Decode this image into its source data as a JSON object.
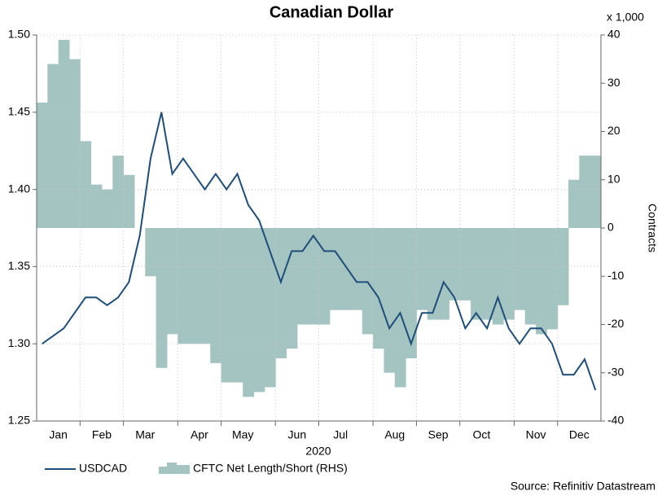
{
  "chart_data": {
    "type": "line+area",
    "title": "Canadian Dollar",
    "xlabel": "2020",
    "y2label": "Contracts",
    "y2unit": "x 1,000",
    "source": "Source: Refinitiv Datastream",
    "categories": [
      null,
      null,
      "Jan",
      null,
      null,
      null,
      "Feb",
      null,
      null,
      null,
      "Mar",
      null,
      null,
      null,
      null,
      "Apr",
      null,
      null,
      null,
      "May",
      null,
      null,
      null,
      null,
      "Jun",
      null,
      null,
      null,
      "Jul",
      null,
      null,
      null,
      null,
      "Aug",
      null,
      null,
      null,
      "Sep",
      null,
      null,
      null,
      "Oct",
      null,
      null,
      null,
      null,
      "Nov",
      null,
      null,
      null,
      "Dec",
      null
    ],
    "ylim": [
      1.25,
      1.5
    ],
    "yticks": [
      1.25,
      {
        "value": 1.3,
        "label": "1.30"
      },
      1.35,
      {
        "value": 1.4,
        "label": "1.40"
      },
      1.45,
      {
        "value": 1.5,
        "label": "1.50"
      }
    ],
    "y2lim": [
      -40,
      40
    ],
    "y2ticks": [
      -40,
      -30,
      -20,
      -10,
      0,
      10,
      20,
      30,
      40
    ],
    "grid": true,
    "series": [
      {
        "name": "USDCAD",
        "type": "line",
        "color": "#1f4e79",
        "values": [
          1.3,
          1.305,
          1.31,
          1.32,
          1.33,
          1.33,
          1.325,
          1.33,
          1.34,
          1.37,
          1.42,
          1.45,
          1.41,
          1.42,
          1.41,
          1.4,
          1.41,
          1.4,
          1.41,
          1.39,
          1.38,
          1.36,
          1.34,
          1.36,
          1.36,
          1.37,
          1.36,
          1.36,
          1.35,
          1.34,
          1.34,
          1.33,
          1.31,
          1.32,
          1.3,
          1.32,
          1.32,
          1.34,
          1.33,
          1.31,
          1.32,
          1.31,
          1.33,
          1.31,
          1.3,
          1.31,
          1.31,
          1.3,
          1.28,
          1.28,
          1.29,
          1.27
        ]
      },
      {
        "name": "CFTC Net Length/Short (RHS)",
        "type": "area",
        "axis": "y2",
        "color": "#a3c4c0",
        "values": [
          26,
          34,
          39,
          35,
          18,
          9,
          8,
          15,
          11,
          0,
          -10,
          -29,
          -22,
          -24,
          -24,
          -24,
          -28,
          -32,
          -32,
          -35,
          -34,
          -33,
          -27,
          -25,
          -20,
          -20,
          -20,
          -17,
          -17,
          -17,
          -22,
          -25,
          -30,
          -33,
          -27,
          -17,
          -19,
          -19,
          -15,
          -15,
          -19,
          -19,
          -20,
          -19,
          -17,
          -20,
          -22,
          -21,
          -16,
          10,
          15,
          15
        ]
      }
    ]
  }
}
